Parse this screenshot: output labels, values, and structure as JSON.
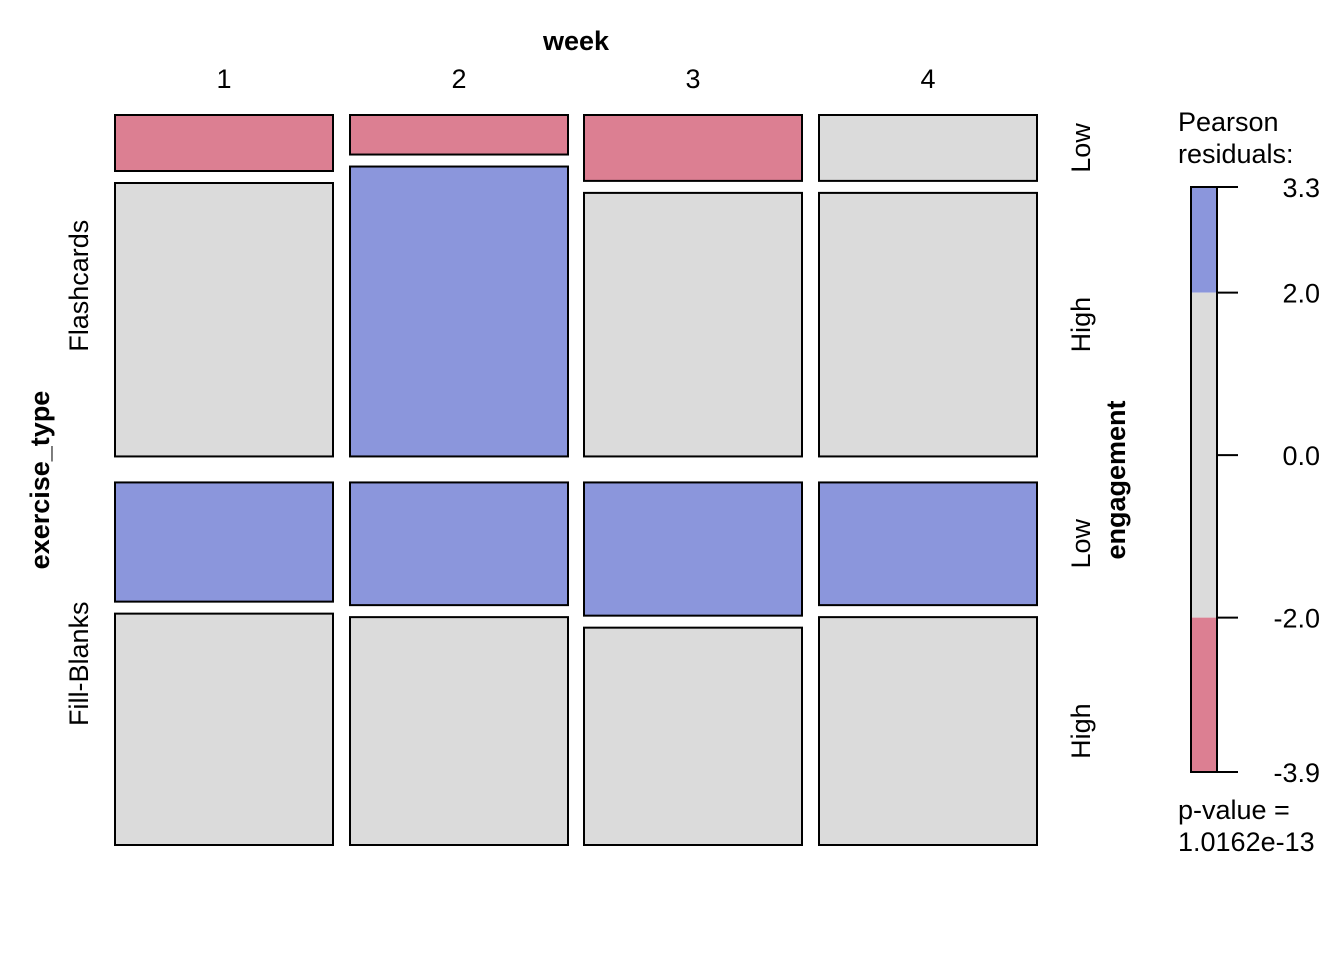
{
  "chart_data": {
    "type": "mosaic",
    "column_variable": "week",
    "row_variable": "exercise_type",
    "sub_variable": "engagement",
    "columns": [
      "1",
      "2",
      "3",
      "4"
    ],
    "rows": [
      "Flashcards",
      "Fill-Blanks"
    ],
    "sub_levels": [
      "Low",
      "High"
    ],
    "low_proportion": {
      "Flashcards": [
        0.17,
        0.12,
        0.2,
        0.2
      ],
      "Fill-Blanks": [
        0.34,
        0.35,
        0.38,
        0.35
      ]
    },
    "row_proportion": [
      0.485,
      0.515
    ],
    "residual_sign": {
      "Flashcards": {
        "Low": [
          "neg",
          "neg",
          "neg",
          "mid"
        ],
        "High": [
          "mid",
          "pos",
          "mid",
          "mid"
        ]
      },
      "Fill-Blanks": {
        "Low": [
          "pos",
          "pos",
          "pos",
          "pos"
        ],
        "High": [
          "mid",
          "mid",
          "mid",
          "mid"
        ]
      }
    },
    "colors": {
      "pos": "#8b96dc",
      "mid": "#dbdbdb",
      "neg": "#dc7f92"
    },
    "legend": {
      "title_lines": [
        "Pearson",
        "residuals:"
      ],
      "breaks": [
        3.3,
        2.0,
        0.0,
        -2.0,
        -3.9
      ],
      "tick_labels": [
        "3.3",
        "2.0",
        "0.0",
        "-2.0",
        "-3.9"
      ],
      "p_value_lines": [
        "p-value =",
        "1.0162e-13"
      ]
    }
  }
}
